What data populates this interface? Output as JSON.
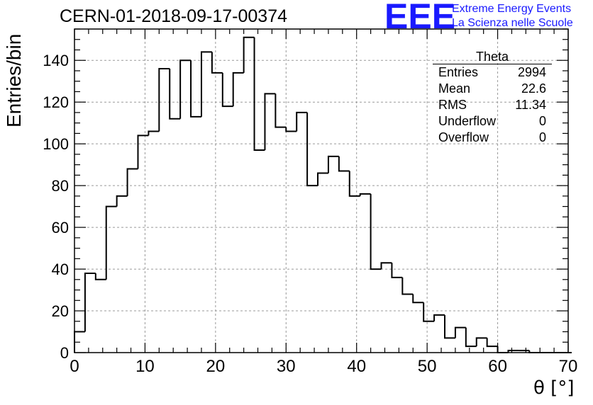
{
  "header": {
    "run_title": "CERN-01-2018-09-17-00374",
    "logo_text": "EEE",
    "org_line1": "Extreme Energy Events",
    "org_line2": "La Scienza nelle Scuole"
  },
  "stats_box": {
    "title": "Theta",
    "rows": [
      {
        "label": "Entries",
        "value": "2994"
      },
      {
        "label": "Mean",
        "value": "22.6"
      },
      {
        "label": "RMS",
        "value": "11.34"
      },
      {
        "label": "Underflow",
        "value": "0"
      },
      {
        "label": "Overflow",
        "value": "0"
      }
    ]
  },
  "colors": {
    "line": "#000000",
    "grid": "#999999",
    "logo": "#1a1aff"
  },
  "chart_data": {
    "type": "histogram",
    "title": "CERN-01-2018-09-17-00374",
    "xlabel": "θ [°]",
    "ylabel": "Entries/bin",
    "xlim": [
      0,
      70
    ],
    "ylim": [
      0,
      155
    ],
    "bin_width": 1.5,
    "x_ticks": [
      0,
      10,
      20,
      30,
      40,
      50,
      60,
      70
    ],
    "y_ticks": [
      0,
      20,
      40,
      60,
      80,
      100,
      120,
      140
    ],
    "grid": true,
    "values": [
      10,
      38,
      35,
      70,
      75,
      88,
      104,
      106,
      136,
      112,
      140,
      113,
      144,
      134,
      118,
      134,
      151,
      97,
      124,
      108,
      106,
      115,
      80,
      86,
      94,
      87,
      75,
      76,
      40,
      43,
      36,
      28,
      24,
      15,
      18,
      7,
      12,
      3,
      7,
      3,
      0,
      1,
      1,
      0,
      0,
      0,
      0
    ]
  }
}
